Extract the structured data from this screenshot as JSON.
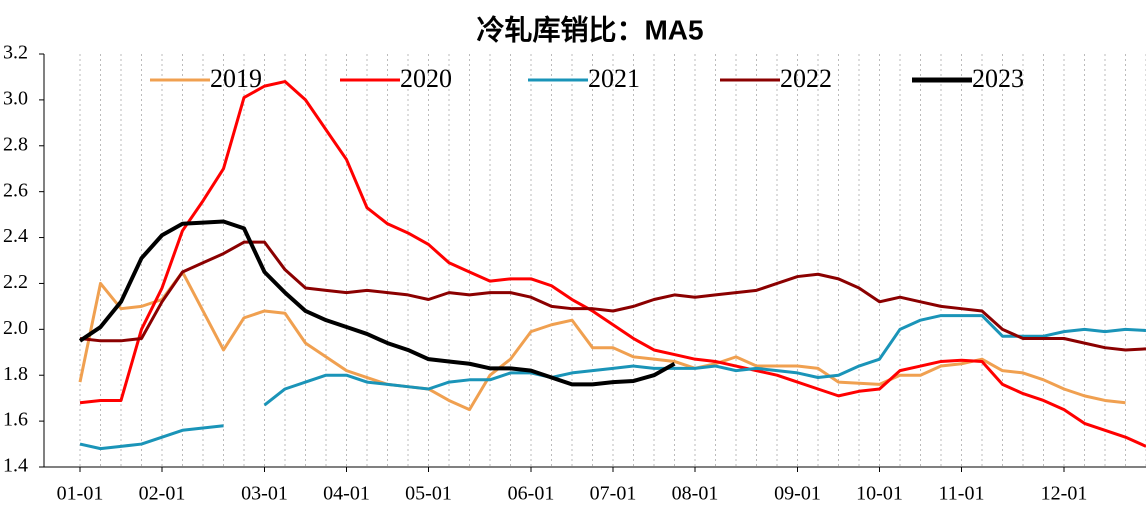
{
  "chart_data": {
    "type": "line",
    "title": "冷轧库销比：MA5",
    "categories": [
      "01-01",
      null,
      null,
      null,
      "02-01",
      null,
      null,
      null,
      null,
      "03-01",
      null,
      null,
      null,
      "04-01",
      null,
      null,
      null,
      "05-01",
      null,
      null,
      null,
      null,
      "06-01",
      null,
      null,
      null,
      "07-01",
      null,
      null,
      null,
      "08-01",
      null,
      null,
      null,
      null,
      "09-01",
      null,
      null,
      null,
      "10-01",
      null,
      null,
      null,
      "11-01",
      null,
      null,
      null,
      null,
      "12-01",
      null,
      null,
      null,
      null
    ],
    "ylim": [
      1.4,
      3.2
    ],
    "yticks": [
      1.4,
      1.6,
      1.8,
      {
        "value": 2.0,
        "label": "2.0"
      },
      2.2,
      2.4,
      2.6,
      2.8,
      {
        "value": 3.0,
        "label": "3.0"
      },
      3.2
    ],
    "grid": true,
    "legend": "top",
    "series": [
      {
        "name": "2019",
        "color": "#f0a050",
        "values": [
          1.77,
          2.2,
          2.09,
          2.1,
          2.13,
          2.25,
          2.08,
          1.91,
          2.05,
          2.08,
          2.07,
          1.94,
          1.88,
          1.82,
          1.79,
          1.76,
          1.75,
          1.74,
          1.69,
          1.65,
          1.8,
          1.87,
          1.99,
          2.02,
          2.04,
          1.92,
          1.92,
          1.88,
          1.87,
          1.86,
          1.83,
          1.85,
          1.88,
          1.84,
          1.84,
          1.84,
          1.83,
          1.77,
          1.765,
          1.76,
          1.8,
          1.8,
          1.84,
          1.85,
          1.87,
          1.82,
          1.81,
          1.78,
          1.74,
          1.71,
          1.69,
          1.68,
          null
        ]
      },
      {
        "name": "2020",
        "color": "#ff0000",
        "values": [
          1.68,
          1.69,
          1.69,
          2.0,
          2.18,
          2.43,
          2.56,
          2.7,
          3.01,
          3.06,
          3.08,
          3.0,
          2.87,
          2.74,
          2.53,
          2.46,
          2.42,
          2.37,
          2.29,
          2.25,
          2.21,
          2.22,
          2.22,
          2.19,
          2.13,
          2.08,
          2.02,
          1.96,
          1.91,
          1.89,
          1.87,
          1.86,
          1.84,
          1.82,
          1.8,
          1.77,
          1.74,
          1.71,
          1.73,
          1.74,
          1.82,
          1.84,
          1.86,
          1.865,
          1.86,
          1.76,
          1.72,
          1.69,
          1.65,
          1.59,
          1.56,
          1.53,
          1.49
        ]
      },
      {
        "name": "2021",
        "color": "#1a94b8",
        "values": [
          1.5,
          1.48,
          1.49,
          1.5,
          1.53,
          1.56,
          1.57,
          1.58,
          null,
          1.67,
          1.74,
          1.77,
          1.8,
          1.8,
          1.77,
          1.76,
          1.75,
          1.74,
          1.77,
          1.78,
          1.78,
          1.81,
          1.81,
          1.79,
          1.81,
          1.82,
          1.83,
          1.84,
          1.83,
          1.83,
          1.83,
          1.84,
          1.82,
          1.83,
          1.82,
          1.81,
          1.79,
          1.8,
          1.84,
          1.87,
          2.0,
          2.04,
          2.06,
          2.06,
          2.06,
          1.97,
          1.97,
          1.97,
          1.99,
          2.0,
          1.99,
          2.0,
          1.995
        ]
      },
      {
        "name": "2022",
        "color": "#8b0000",
        "values": [
          1.96,
          1.95,
          1.95,
          1.96,
          2.12,
          2.25,
          2.29,
          2.33,
          2.38,
          2.38,
          2.26,
          2.18,
          2.17,
          2.16,
          2.17,
          2.16,
          2.15,
          2.13,
          2.16,
          2.15,
          2.16,
          2.16,
          2.14,
          2.1,
          2.09,
          2.09,
          2.08,
          2.1,
          2.13,
          2.15,
          2.14,
          2.15,
          2.16,
          2.17,
          2.2,
          2.23,
          2.24,
          2.22,
          2.18,
          2.12,
          2.14,
          2.12,
          2.1,
          2.09,
          2.08,
          2.0,
          1.96,
          1.96,
          1.96,
          1.94,
          1.92,
          1.91,
          1.915
        ]
      },
      {
        "name": "2023",
        "color": "#000000",
        "values": [
          1.95,
          2.01,
          2.12,
          2.31,
          2.41,
          2.46,
          2.465,
          2.47,
          2.44,
          2.25,
          2.16,
          2.08,
          2.04,
          2.01,
          1.98,
          1.94,
          1.91,
          1.87,
          1.86,
          1.85,
          1.83,
          1.83,
          1.82,
          1.79,
          1.76,
          1.76,
          1.77,
          1.775,
          1.8,
          1.85,
          null,
          null,
          null,
          null,
          null,
          null,
          null,
          null,
          null,
          null,
          null,
          null,
          null,
          null,
          null,
          null,
          null,
          null,
          null,
          null,
          null,
          null,
          null
        ]
      }
    ]
  }
}
